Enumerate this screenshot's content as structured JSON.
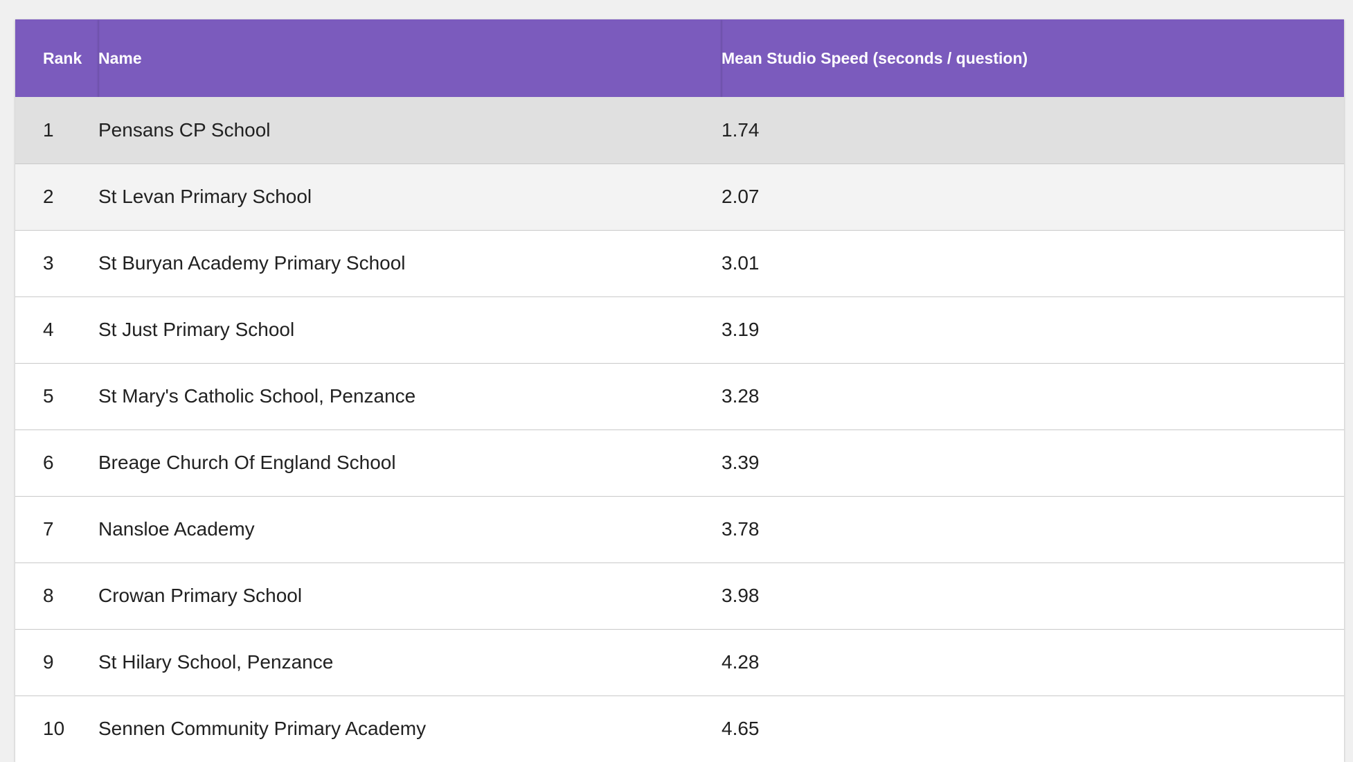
{
  "leaderboard": {
    "header_color": "#7b5bbd",
    "columns": {
      "rank": "Rank",
      "name": "Name",
      "speed": "Mean Studio Speed (seconds / question)"
    },
    "rows": [
      {
        "rank": "1",
        "name": "Pensans CP School",
        "speed": "1.74"
      },
      {
        "rank": "2",
        "name": "St Levan Primary School",
        "speed": "2.07"
      },
      {
        "rank": "3",
        "name": "St Buryan Academy Primary School",
        "speed": "3.01"
      },
      {
        "rank": "4",
        "name": "St Just Primary School",
        "speed": "3.19"
      },
      {
        "rank": "5",
        "name": "St Mary's Catholic School, Penzance",
        "speed": "3.28"
      },
      {
        "rank": "6",
        "name": "Breage Church Of England School",
        "speed": "3.39"
      },
      {
        "rank": "7",
        "name": "Nansloe Academy",
        "speed": "3.78"
      },
      {
        "rank": "8",
        "name": "Crowan Primary School",
        "speed": "3.98"
      },
      {
        "rank": "9",
        "name": "St Hilary School, Penzance",
        "speed": "4.28"
      },
      {
        "rank": "10",
        "name": "Sennen Community Primary Academy",
        "speed": "4.65"
      }
    ]
  }
}
